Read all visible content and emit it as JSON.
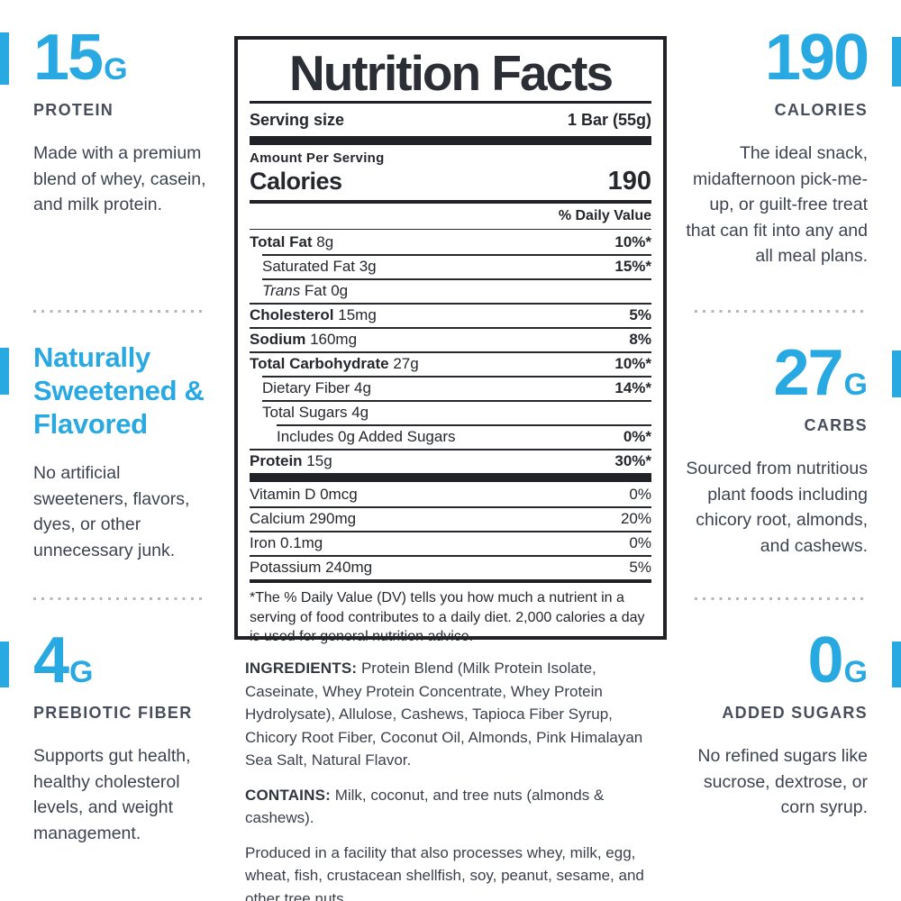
{
  "colors": {
    "accent_blue": "#29a9e2",
    "dark_text": "#3d4350",
    "label_ink": "#25272d"
  },
  "left_column": {
    "sections": [
      {
        "value": "15",
        "unit": "G",
        "heading": "PROTEIN",
        "body": "Made with a premium blend of whey, casein, and milk protein."
      },
      {
        "title": "Naturally Sweetened & Flavored",
        "body": "No artificial sweeteners, flavors, dyes, or other unnecessary junk."
      },
      {
        "value": "4",
        "unit": "G",
        "heading": "PREBIOTIC FIBER",
        "body": "Supports gut health, healthy cholesterol levels, and weight management."
      }
    ]
  },
  "right_column": {
    "sections": [
      {
        "value": "190",
        "unit": "",
        "heading": "CALORIES",
        "body": "The ideal snack, midafternoon pick-me-up, or guilt-free treat that can fit into any and all meal plans."
      },
      {
        "value": "27",
        "unit": "G",
        "heading": "CARBS",
        "body": "Sourced from nutritious plant foods including chicory root, almonds, and cashews."
      },
      {
        "value": "0",
        "unit": "G",
        "heading": "ADDED SUGARS",
        "body": "No refined sugars like sucrose, dextrose, or corn syrup."
      }
    ]
  },
  "nutrition_label": {
    "title": "Nutrition Facts",
    "serving_size_label": "Serving size",
    "serving_size_value": "1 Bar (55g)",
    "amount_per_serving": "Amount Per Serving",
    "calories_label": "Calories",
    "calories_value": "190",
    "daily_value_header": "% Daily Value",
    "nutrient_rows": [
      {
        "lead": "Total Fat",
        "lead_style": "bold",
        "text": " 8g",
        "pct": "10%*",
        "indent": 0
      },
      {
        "lead": "",
        "lead_style": "",
        "text": "Saturated Fat 3g",
        "pct": "15%*",
        "indent": 1
      },
      {
        "lead": "Trans",
        "lead_style": "italic",
        "text": " Fat 0g",
        "pct": "",
        "indent": 1
      },
      {
        "lead": "Cholesterol",
        "lead_style": "bold",
        "text": " 15mg",
        "pct": "5%",
        "indent": 0
      },
      {
        "lead": "Sodium",
        "lead_style": "bold",
        "text": " 160mg",
        "pct": "8%",
        "indent": 0
      },
      {
        "lead": "Total Carbohydrate",
        "lead_style": "bold",
        "text": " 27g",
        "pct": "10%*",
        "indent": 0
      },
      {
        "lead": "",
        "lead_style": "",
        "text": "Dietary Fiber 4g",
        "pct": "14%*",
        "indent": 1
      },
      {
        "lead": "",
        "lead_style": "",
        "text": "Total Sugars 4g",
        "pct": "",
        "indent": 1
      },
      {
        "lead": "",
        "lead_style": "",
        "text": "Includes 0g Added Sugars",
        "pct": "0%*",
        "indent": 2
      },
      {
        "lead": "Protein",
        "lead_style": "bold",
        "text": " 15g",
        "pct": "30%*",
        "indent": 0
      }
    ],
    "vitamin_rows": [
      {
        "text": "Vitamin D 0mcg",
        "pct": "0%"
      },
      {
        "text": "Calcium 290mg",
        "pct": "20%"
      },
      {
        "text": "Iron 0.1mg",
        "pct": "0%"
      },
      {
        "text": "Potassium 240mg",
        "pct": "5%"
      }
    ],
    "footnote": "*The % Daily Value (DV) tells you how much a nutrient in a serving of food contributes to a daily diet. 2,000 calories a day is used for general nutrition advice."
  },
  "ingredients": {
    "paragraphs": [
      {
        "lead": "INGREDIENTS:",
        "text": " Protein Blend (Milk Protein Isolate, Caseinate, Whey Protein Concentrate, Whey Protein Hydrolysate), Allulose, Cashews, Tapioca Fiber Syrup, Chicory Root Fiber, Coconut Oil, Almonds, Pink Himalayan Sea Salt, Natural Flavor."
      },
      {
        "lead": "CONTAINS:",
        "text": " Milk, coconut, and tree nuts (almonds & cashews)."
      },
      {
        "lead": "",
        "text": "Produced in a facility that also processes whey, milk, egg, wheat, fish, crustacean shellfish, soy, peanut, sesame, and other tree nuts."
      }
    ]
  }
}
